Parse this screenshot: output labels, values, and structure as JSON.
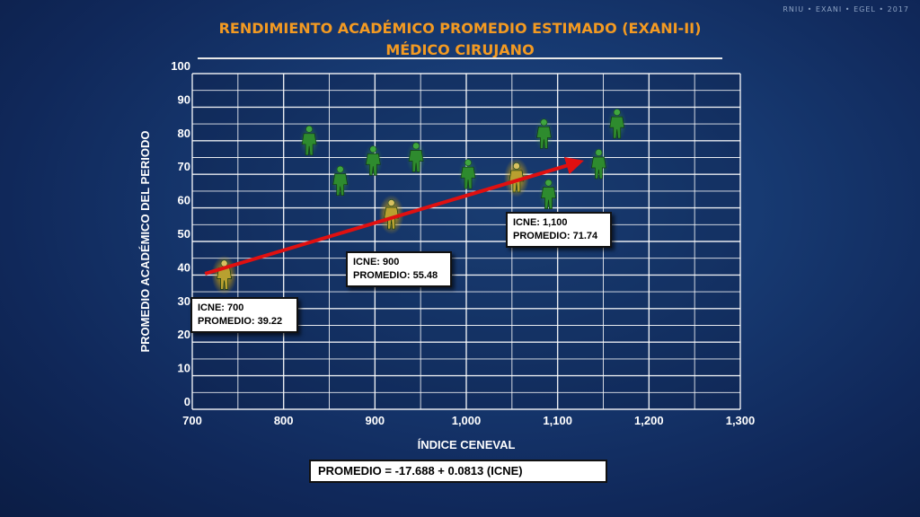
{
  "watermark": "RNIU • EXANI • EGEL • 2017",
  "title_line1": "RENDIMIENTO ACADÉMICO PROMEDIO ESTIMADO (EXANI-II)",
  "title_line2": "MÉDICO CIRUJANO",
  "colors": {
    "title": "#f39a22",
    "grid": "#ffffff",
    "trend": "#e01010",
    "figure_green": "#2e8b2e",
    "figure_yellow": "#c8a418"
  },
  "chart_data": {
    "type": "scatter",
    "xlabel": "ÍNDICE CENEVAL",
    "ylabel": "PROMEDIO ACADÉMICO DEL PERIODO",
    "xlim": [
      700,
      1300
    ],
    "ylim": [
      0,
      100
    ],
    "x_ticks": [
      "700",
      "800",
      "900",
      "1,000",
      "1,100",
      "1,200",
      "1,300"
    ],
    "y_ticks": [
      "0",
      "10",
      "20",
      "30",
      "40",
      "50",
      "60",
      "70",
      "80",
      "90",
      "100"
    ],
    "grid": true,
    "marker_icon": "person-icon",
    "points": [
      {
        "x": 735,
        "y": 40,
        "highlight": "yellow"
      },
      {
        "x": 828,
        "y": 80,
        "highlight": "green"
      },
      {
        "x": 862,
        "y": 68,
        "highlight": "green"
      },
      {
        "x": 898,
        "y": 74,
        "highlight": "green"
      },
      {
        "x": 918,
        "y": 58,
        "highlight": "yellow"
      },
      {
        "x": 945,
        "y": 75,
        "highlight": "green"
      },
      {
        "x": 1002,
        "y": 70,
        "highlight": "green"
      },
      {
        "x": 1055,
        "y": 69,
        "highlight": "yellow"
      },
      {
        "x": 1085,
        "y": 82,
        "highlight": "green"
      },
      {
        "x": 1090,
        "y": 64,
        "highlight": "green"
      },
      {
        "x": 1145,
        "y": 73,
        "highlight": "green"
      },
      {
        "x": 1165,
        "y": 85,
        "highlight": "green"
      }
    ],
    "trendline": {
      "x": [
        714,
        1125
      ],
      "y": [
        40.4,
        73.8
      ],
      "arrow": true
    }
  },
  "callouts": [
    {
      "line1": "ICNE: 700",
      "line2": "PROMEDIO: 39.22"
    },
    {
      "line1": "ICNE: 900",
      "line2": "PROMEDIO: 55.48"
    },
    {
      "line1": "ICNE: 1,100",
      "line2": "PROMEDIO: 71.74"
    }
  ],
  "formula": "PROMEDIO = -17.688 + 0.0813 (ICNE)"
}
